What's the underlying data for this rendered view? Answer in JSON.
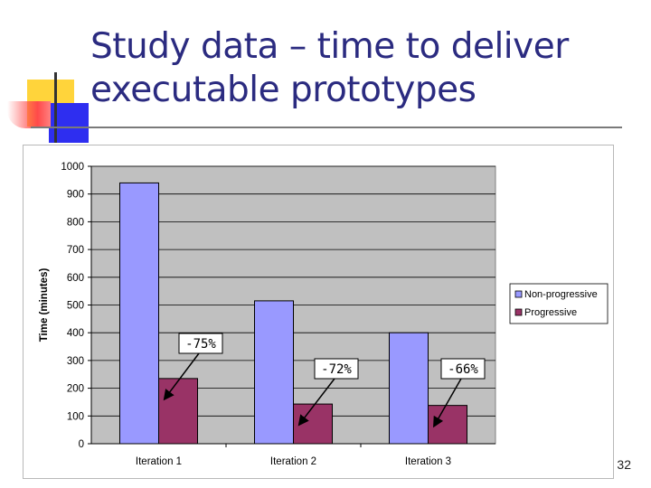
{
  "slide": {
    "title_lines": [
      "Study data – time to deliver",
      "executable prototypes"
    ],
    "page_number": "32"
  },
  "colors": {
    "title": "#2b2b80",
    "plot_background": "#c0c0c0",
    "deco_yellow": "#ffd43b",
    "deco_red": "#ff4a4a",
    "deco_blue": "#2e2ef0"
  },
  "chart_data": {
    "type": "bar",
    "categories": [
      "Iteration 1",
      "Iteration 2",
      "Iteration 3"
    ],
    "series": [
      {
        "name": "Non-progressive",
        "color": "#9999ff",
        "values": [
          940,
          515,
          400
        ]
      },
      {
        "name": "Progressive",
        "color": "#993366",
        "values": [
          235,
          143,
          138
        ]
      }
    ],
    "ylabel": "Time (minutes)",
    "xlabel": "",
    "ylim": [
      0,
      1000
    ],
    "yticks": [
      0,
      100,
      200,
      300,
      400,
      500,
      600,
      700,
      800,
      900,
      1000
    ],
    "grid": true,
    "legend": "right",
    "annotations": [
      {
        "text": "-75%",
        "category": "Iteration 1"
      },
      {
        "text": "-72%",
        "category": "Iteration 2"
      },
      {
        "text": "-66%",
        "category": "Iteration 3"
      }
    ]
  }
}
